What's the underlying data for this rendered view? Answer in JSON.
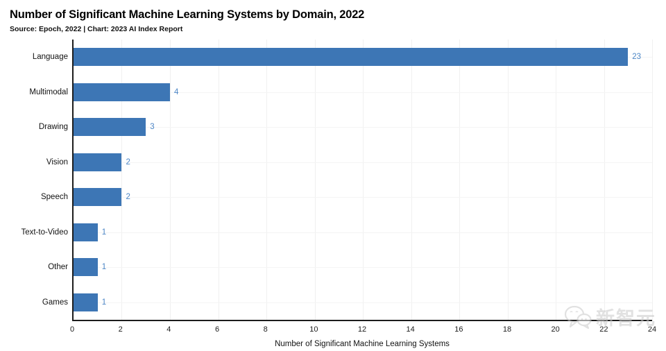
{
  "chart_data": {
    "type": "bar",
    "orientation": "horizontal",
    "title": "Number of Significant Machine Learning Systems by Domain, 2022",
    "subtitle": "Source: Epoch, 2022 | Chart: 2023 AI Index Report",
    "categories": [
      "Language",
      "Multimodal",
      "Drawing",
      "Vision",
      "Speech",
      "Text-to-Video",
      "Other",
      "Games"
    ],
    "values": [
      23,
      4,
      3,
      2,
      2,
      1,
      1,
      1
    ],
    "xlabel": "Number of Significant Machine Learning Systems",
    "ylabel": "",
    "xlim": [
      0,
      24
    ],
    "xticks": [
      0,
      2,
      4,
      6,
      8,
      10,
      12,
      14,
      16,
      18,
      20,
      22,
      24
    ],
    "grid": "vertical-light",
    "legend": "none",
    "bar_color": "#3d76b5",
    "value_label_color": "#4c86c6",
    "axis_color": "#1c1c1c",
    "gridline_color": "#f0f0f0"
  },
  "watermark": {
    "text": "新智元",
    "icon": "wechat-chat-bubbles-icon"
  }
}
